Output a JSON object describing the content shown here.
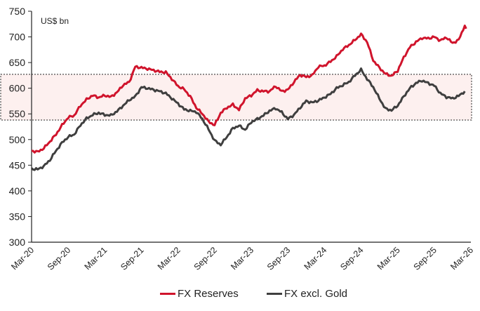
{
  "chart_data": {
    "type": "line",
    "title": "",
    "unit_label": "US$ bn",
    "xlabel": "",
    "ylabel": "",
    "ylim": [
      300,
      750
    ],
    "yticks": [
      300,
      350,
      400,
      450,
      500,
      550,
      600,
      650,
      700,
      750
    ],
    "xtick_labels": [
      "Mar-20",
      "Sep-20",
      "Mar-21",
      "Sep-21",
      "Mar-22",
      "Sep-22",
      "Mar-23",
      "Sep-23",
      "Mar-24",
      "Sep-24",
      "Mar-25",
      "Sep-25",
      "Mar-26"
    ],
    "band": {
      "from": 538,
      "to": 627,
      "color": "#fdf0ef",
      "border": "dashed"
    },
    "x_months": [
      "Mar-20",
      "Apr-20",
      "May-20",
      "Jun-20",
      "Jul-20",
      "Aug-20",
      "Sep-20",
      "Oct-20",
      "Nov-20",
      "Dec-20",
      "Jan-21",
      "Feb-21",
      "Mar-21",
      "Apr-21",
      "May-21",
      "Jun-21",
      "Jul-21",
      "Aug-21",
      "Sep-21",
      "Oct-21",
      "Nov-21",
      "Dec-21",
      "Jan-22",
      "Feb-22",
      "Mar-22",
      "Apr-22",
      "May-22",
      "Jun-22",
      "Jul-22",
      "Aug-22",
      "Sep-22",
      "Oct-22",
      "Nov-22",
      "Dec-22",
      "Jan-23",
      "Feb-23",
      "Mar-23",
      "Apr-23",
      "May-23",
      "Jun-23",
      "Jul-23",
      "Aug-23",
      "Sep-23",
      "Oct-23",
      "Nov-23",
      "Dec-23",
      "Jan-24",
      "Feb-24",
      "Mar-24",
      "Apr-24",
      "May-24",
      "Jun-24",
      "Jul-24",
      "Aug-24",
      "Sep-24",
      "Oct-24",
      "Nov-24",
      "Dec-24",
      "Jan-25",
      "Feb-25",
      "Mar-25",
      "Apr-25",
      "May-25",
      "Jun-25",
      "Jul-25",
      "Aug-25",
      "Sep-25",
      "Oct-25",
      "Nov-25",
      "Dec-25",
      "Jan-26",
      "Feb-26"
    ],
    "series": [
      {
        "name": "FX Reserves",
        "color": "#d0142c",
        "values": [
          478,
          476,
          483,
          496,
          510,
          528,
          543,
          547,
          566,
          578,
          586,
          582,
          586,
          583,
          592,
          606,
          612,
          642,
          640,
          638,
          635,
          632,
          631,
          618,
          604,
          598,
          584,
          562,
          550,
          535,
          528,
          552,
          562,
          568,
          558,
          580,
          586,
          596,
          594,
          594,
          604,
          594,
          597,
          612,
          626,
          622,
          625,
          642,
          644,
          652,
          662,
          676,
          684,
          694,
          705,
          690,
          654,
          640,
          628,
          624,
          634,
          660,
          680,
          690,
          698,
          697,
          700,
          693,
          699,
          688,
          694,
          722
        ]
      },
      {
        "name": "FX excl. Gold",
        "color": "#3f3f3f",
        "values": [
          443,
          442,
          448,
          460,
          478,
          494,
          505,
          510,
          528,
          541,
          548,
          552,
          548,
          547,
          555,
          566,
          577,
          584,
          602,
          600,
          597,
          594,
          590,
          580,
          570,
          559,
          556,
          554,
          540,
          520,
          498,
          490,
          505,
          522,
          527,
          519,
          534,
          540,
          547,
          556,
          561,
          553,
          540,
          548,
          562,
          575,
          572,
          576,
          582,
          589,
          600,
          606,
          612,
          625,
          636,
          618,
          602,
          580,
          560,
          557,
          566,
          584,
          600,
          610,
          615,
          610,
          605,
          590,
          583,
          580,
          585,
          594
        ]
      }
    ],
    "legend": {
      "position": "bottom",
      "items": [
        "FX Reserves",
        "FX excl. Gold"
      ]
    }
  }
}
